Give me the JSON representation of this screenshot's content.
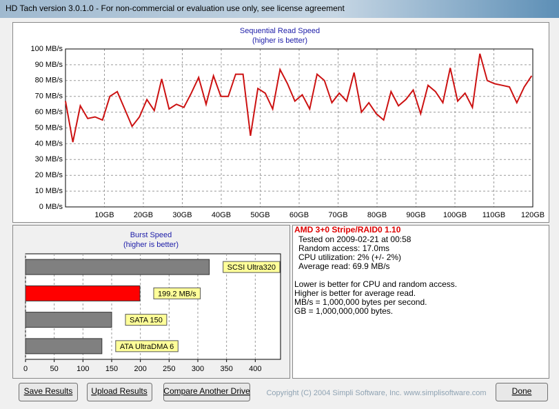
{
  "window": {
    "title": "HD Tach version 3.0.1.0  - For non-commercial or evaluation use only, see license agreement"
  },
  "chart_data": [
    {
      "type": "line",
      "title": "Sequential Read Speed",
      "subtitle": "(higher is better)",
      "x": [
        0,
        1.9,
        3.8,
        5.7,
        7.6,
        9.5,
        11.4,
        13.3,
        15.2,
        17.1,
        19,
        20.9,
        22.8,
        24.7,
        26.6,
        28.5,
        30.4,
        32.3,
        34.2,
        36.1,
        38,
        39.9,
        41.8,
        43.7,
        45.6,
        47.5,
        49.4,
        51.3,
        53.2,
        55.1,
        57,
        58.9,
        60.8,
        62.7,
        64.6,
        66.5,
        68.4,
        70.3,
        72.2,
        74.1,
        76,
        77.9,
        79.8,
        81.7,
        83.6,
        85.5,
        87.4,
        89.3,
        91.2,
        93.1,
        95,
        96.9,
        98.8,
        100.7,
        102.6,
        104.5,
        106.4,
        108.3,
        110.2,
        112.1,
        114,
        115.9,
        117.8,
        119.7
      ],
      "series": [
        {
          "color": "#cc1111",
          "values": [
            67,
            41,
            64,
            56,
            57,
            55,
            70,
            73,
            62,
            51,
            57,
            68,
            61,
            81,
            62,
            65,
            63,
            72,
            82,
            65,
            83,
            70,
            70,
            84,
            84,
            45,
            75,
            72,
            62,
            87,
            78,
            67,
            71,
            62,
            84,
            80,
            66,
            72,
            67,
            85,
            60,
            66,
            59,
            55,
            73,
            64,
            68,
            74,
            59,
            77,
            73,
            66,
            88,
            67,
            72,
            63,
            97,
            80,
            78,
            77,
            76,
            66,
            76,
            83
          ]
        }
      ],
      "xlim": [
        0,
        120
      ],
      "xticks": [
        {
          "value": 10,
          "label": "10GB"
        },
        {
          "value": 20,
          "label": "20GB"
        },
        {
          "value": 30,
          "label": "30GB"
        },
        {
          "value": 40,
          "label": "40GB"
        },
        {
          "value": 50,
          "label": "50GB"
        },
        {
          "value": 60,
          "label": "60GB"
        },
        {
          "value": 70,
          "label": "70GB"
        },
        {
          "value": 80,
          "label": "80GB"
        },
        {
          "value": 90,
          "label": "90GB"
        },
        {
          "value": 100,
          "label": "100GB"
        },
        {
          "value": 110,
          "label": "110GB"
        },
        {
          "value": 120,
          "label": "120GB"
        }
      ],
      "ylim": [
        0,
        100
      ],
      "yticks": [
        {
          "value": 0,
          "label": "0 MB/s"
        },
        {
          "value": 10,
          "label": "10 MB/s"
        },
        {
          "value": 20,
          "label": "20 MB/s"
        },
        {
          "value": 30,
          "label": "30 MB/s"
        },
        {
          "value": 40,
          "label": "40 MB/s"
        },
        {
          "value": 50,
          "label": "50 MB/s"
        },
        {
          "value": 60,
          "label": "60 MB/s"
        },
        {
          "value": 70,
          "label": "70 MB/s"
        },
        {
          "value": 80,
          "label": "80 MB/s"
        },
        {
          "value": 90,
          "label": "90 MB/s"
        },
        {
          "value": 100,
          "label": "100 MB/s"
        }
      ],
      "grid": true
    },
    {
      "type": "barh",
      "title": "Burst Speed",
      "subtitle": "(higher is better)",
      "categories": [
        "SCSI Ultra320",
        null,
        "SATA 150",
        "ATA UltraDMA 6"
      ],
      "values": [
        320,
        199.2,
        150,
        133
      ],
      "value_labels": [
        null,
        "199.2 MB/s",
        null,
        null
      ],
      "colors": [
        "#808080",
        "#ff0000",
        "#808080",
        "#808080"
      ],
      "xlim": [
        0,
        444
      ],
      "xticks": [
        0,
        50,
        100,
        150,
        200,
        250,
        300,
        350,
        400
      ],
      "grid": true
    }
  ],
  "info": {
    "title": "AMD 3+0 Stripe/RAID0 1.10",
    "details": [
      "Tested on 2009-02-21 at 00:58",
      "Random access: 17.0ms",
      "CPU utilization: 2% (+/- 2%)",
      "Average read: 69.9 MB/s"
    ],
    "notes": [
      "Lower is better for CPU and random access.",
      "Higher is better for average read.",
      "MB/s = 1,000,000 bytes per second.",
      "GB = 1,000,000,000 bytes."
    ]
  },
  "buttons": [
    "Save Results",
    "Upload Results",
    "Compare Another Drive",
    "Done"
  ],
  "copyright": "Copyright (C) 2004 Simpli Software, Inc. www.simplisoftware.com"
}
